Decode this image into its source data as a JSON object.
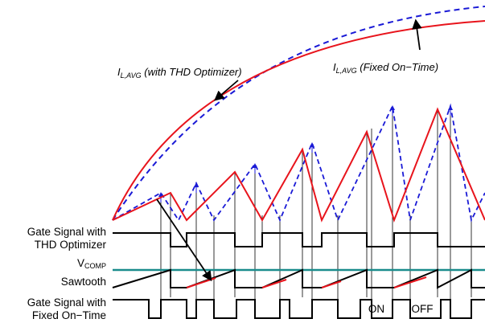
{
  "annotations": {
    "with_thd": {
      "main": "I",
      "sub": "L,AVG",
      "rest": " (with THD Optimizer)"
    },
    "fixed_on": {
      "main": "I",
      "sub": "L,AVG",
      "rest": " (Fixed On−Time)"
    }
  },
  "row_labels": {
    "gate_thd": [
      "Gate Signal with",
      "THD Optimizer"
    ],
    "vcomp": {
      "main": "V",
      "sub": "COMP"
    },
    "sawtooth": "Sawtooth",
    "gate_fixed": [
      "Gate Signal with",
      "Fixed On−Time"
    ]
  },
  "phase_labels": {
    "on": "ON",
    "off": "OFF"
  },
  "colors": {
    "thd_current": "#e8141c",
    "fixed_current": "#1a1ad6",
    "vcomp_line": "#1a8c8c",
    "signals": "#000000"
  },
  "legend_note": ""
}
